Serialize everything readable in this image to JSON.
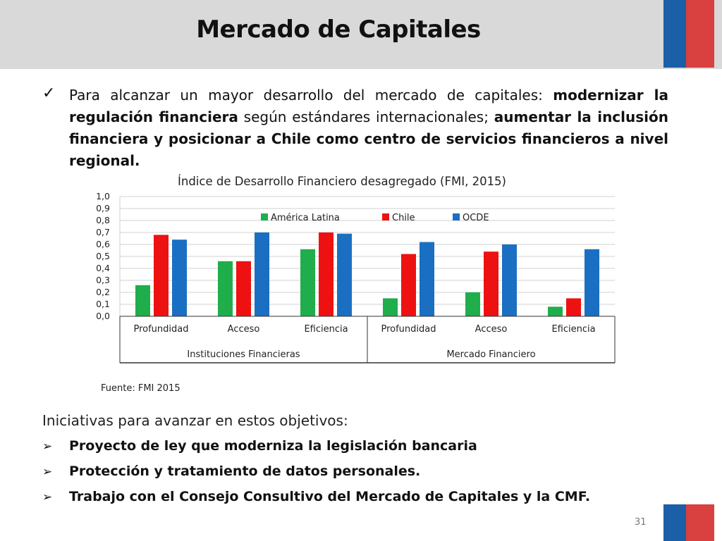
{
  "slide": {
    "title": "Mercado de Capitales",
    "intro_check_icon": "✓",
    "intro_parts": [
      {
        "text": "Para alcanzar un mayor desarrollo del mercado de capitales: ",
        "bold": false
      },
      {
        "text": "modernizar la regulación financiera",
        "bold": true
      },
      {
        "text": " según estándares internacionales; ",
        "bold": false
      },
      {
        "text": "aumentar la inclusión financiera y posicionar a Chile como centro de servicios financieros a nivel regional.",
        "bold": true
      }
    ],
    "source": "Fuente: FMI 2015",
    "initiatives_heading": "Iniciativas para avanzar en estos objetivos:",
    "bullet_icon": "➢",
    "bullets": [
      "Proyecto de ley que moderniza la legislación bancaria",
      "Protección y tratamiento de datos personales.",
      "Trabajo con el Consejo Consultivo del Mercado de Capitales y la CMF."
    ],
    "page_number": "31",
    "colors": {
      "header": "#d9d9d9",
      "flag_blue": "#1a5fa8",
      "flag_red": "#d94040"
    }
  },
  "chart_data": {
    "type": "bar",
    "title": "Índice de Desarrollo Financiero desagregado (FMI, 2015)",
    "categories": [
      "Profundidad",
      "Acceso",
      "Eficiencia",
      "Profundidad",
      "Acceso",
      "Eficiencia"
    ],
    "groups": [
      {
        "label": "Instituciones Financieras",
        "categories": [
          0,
          1,
          2
        ]
      },
      {
        "label": "Mercado Financiero",
        "categories": [
          3,
          4,
          5
        ]
      }
    ],
    "series": [
      {
        "name": "América Latina",
        "color": "#1fae4b",
        "values": [
          0.26,
          0.46,
          0.56,
          0.15,
          0.2,
          0.08
        ]
      },
      {
        "name": "Chile",
        "color": "#ee1111",
        "values": [
          0.68,
          0.46,
          0.7,
          0.52,
          0.54,
          0.15
        ]
      },
      {
        "name": "OCDE",
        "color": "#1a6fc2",
        "values": [
          0.64,
          0.7,
          0.69,
          0.62,
          0.6,
          0.56
        ]
      }
    ],
    "ylim": [
      0,
      1
    ],
    "yticks": [
      "0,0",
      "0,1",
      "0,2",
      "0,3",
      "0,4",
      "0,5",
      "0,6",
      "0,7",
      "0,8",
      "0,9",
      "1,0"
    ],
    "grid": true,
    "legend_position": "top-center"
  }
}
